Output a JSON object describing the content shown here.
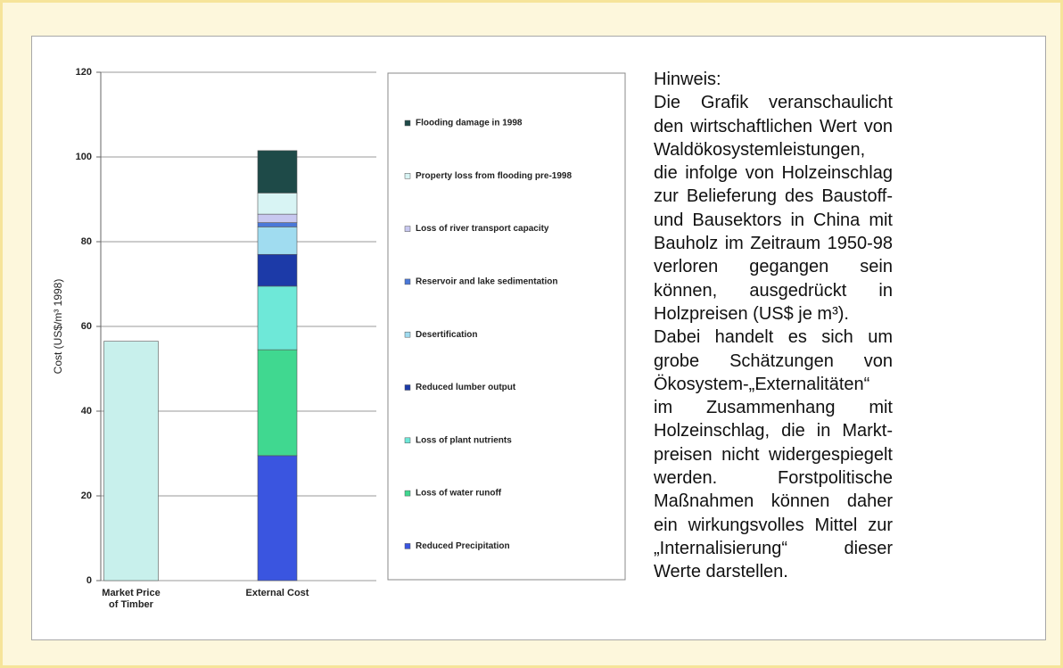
{
  "chart_data": {
    "type": "stacked_bar",
    "y_label": "Cost (US$/m³ 1998)",
    "categories": [
      "Market Price of Timber",
      "External Cost"
    ],
    "series": [
      {
        "color": "#c8f0ec",
        "values": [
          56.5,
          null
        ]
      },
      {
        "name": "Reduced Precipitation",
        "color": "#3a55e0",
        "values": [
          null,
          29.5
        ]
      },
      {
        "name": "Loss of water runoff",
        "color": "#40d890",
        "values": [
          null,
          25
        ]
      },
      {
        "name": "Loss of plant nutrients",
        "color": "#6ee8d8",
        "values": [
          null,
          15
        ]
      },
      {
        "name": "Reduced lumber output",
        "color": "#1c3aa8",
        "values": [
          null,
          7.5
        ]
      },
      {
        "name": "Desertification",
        "color": "#a0dcf0",
        "values": [
          null,
          6.5
        ]
      },
      {
        "name": "Reservoir and lake sedimentation",
        "color": "#4a78d8",
        "values": [
          null,
          1
        ]
      },
      {
        "name": "Loss of river transport capacity",
        "color": "#c8c8f0",
        "values": [
          null,
          2
        ]
      },
      {
        "name": "Property loss from flooding pre-1998",
        "color": "#d8f4f4",
        "values": [
          null,
          5
        ]
      },
      {
        "name": "Flooding damage in 1998",
        "color": "#1e4a48",
        "values": [
          null,
          10
        ]
      }
    ],
    "ylim": [
      0,
      120
    ],
    "yticks": [
      0,
      20,
      40,
      60,
      80,
      100,
      120
    ],
    "grid": true
  },
  "note": {
    "title": "Hinweis:",
    "paragraphs": [
      "Die Grafik veranschaulicht den wirtschaftlichen Wert von Waldöko­systemleistungen, die infolge von Holzeinschlag zur Belieferung des Baustoff- und Bausektors in China mit Bauholz im Zeitraum 1950-98 verloren gegangen sein können, ausgedrückt in Holzpreisen (US$ je m³).",
      "Dabei handelt es sich um grobe Schätzungen von Ökosystem-„Externalitäten“ im Zusammenhang mit Holzeinschlag, die in Markt­preisen nicht widergespiegelt werden. Forstpolitische Maßnahmen können daher ein wirkungsvolles Mittel zur „Internalisierung“ dieser Werte darstellen."
    ]
  }
}
